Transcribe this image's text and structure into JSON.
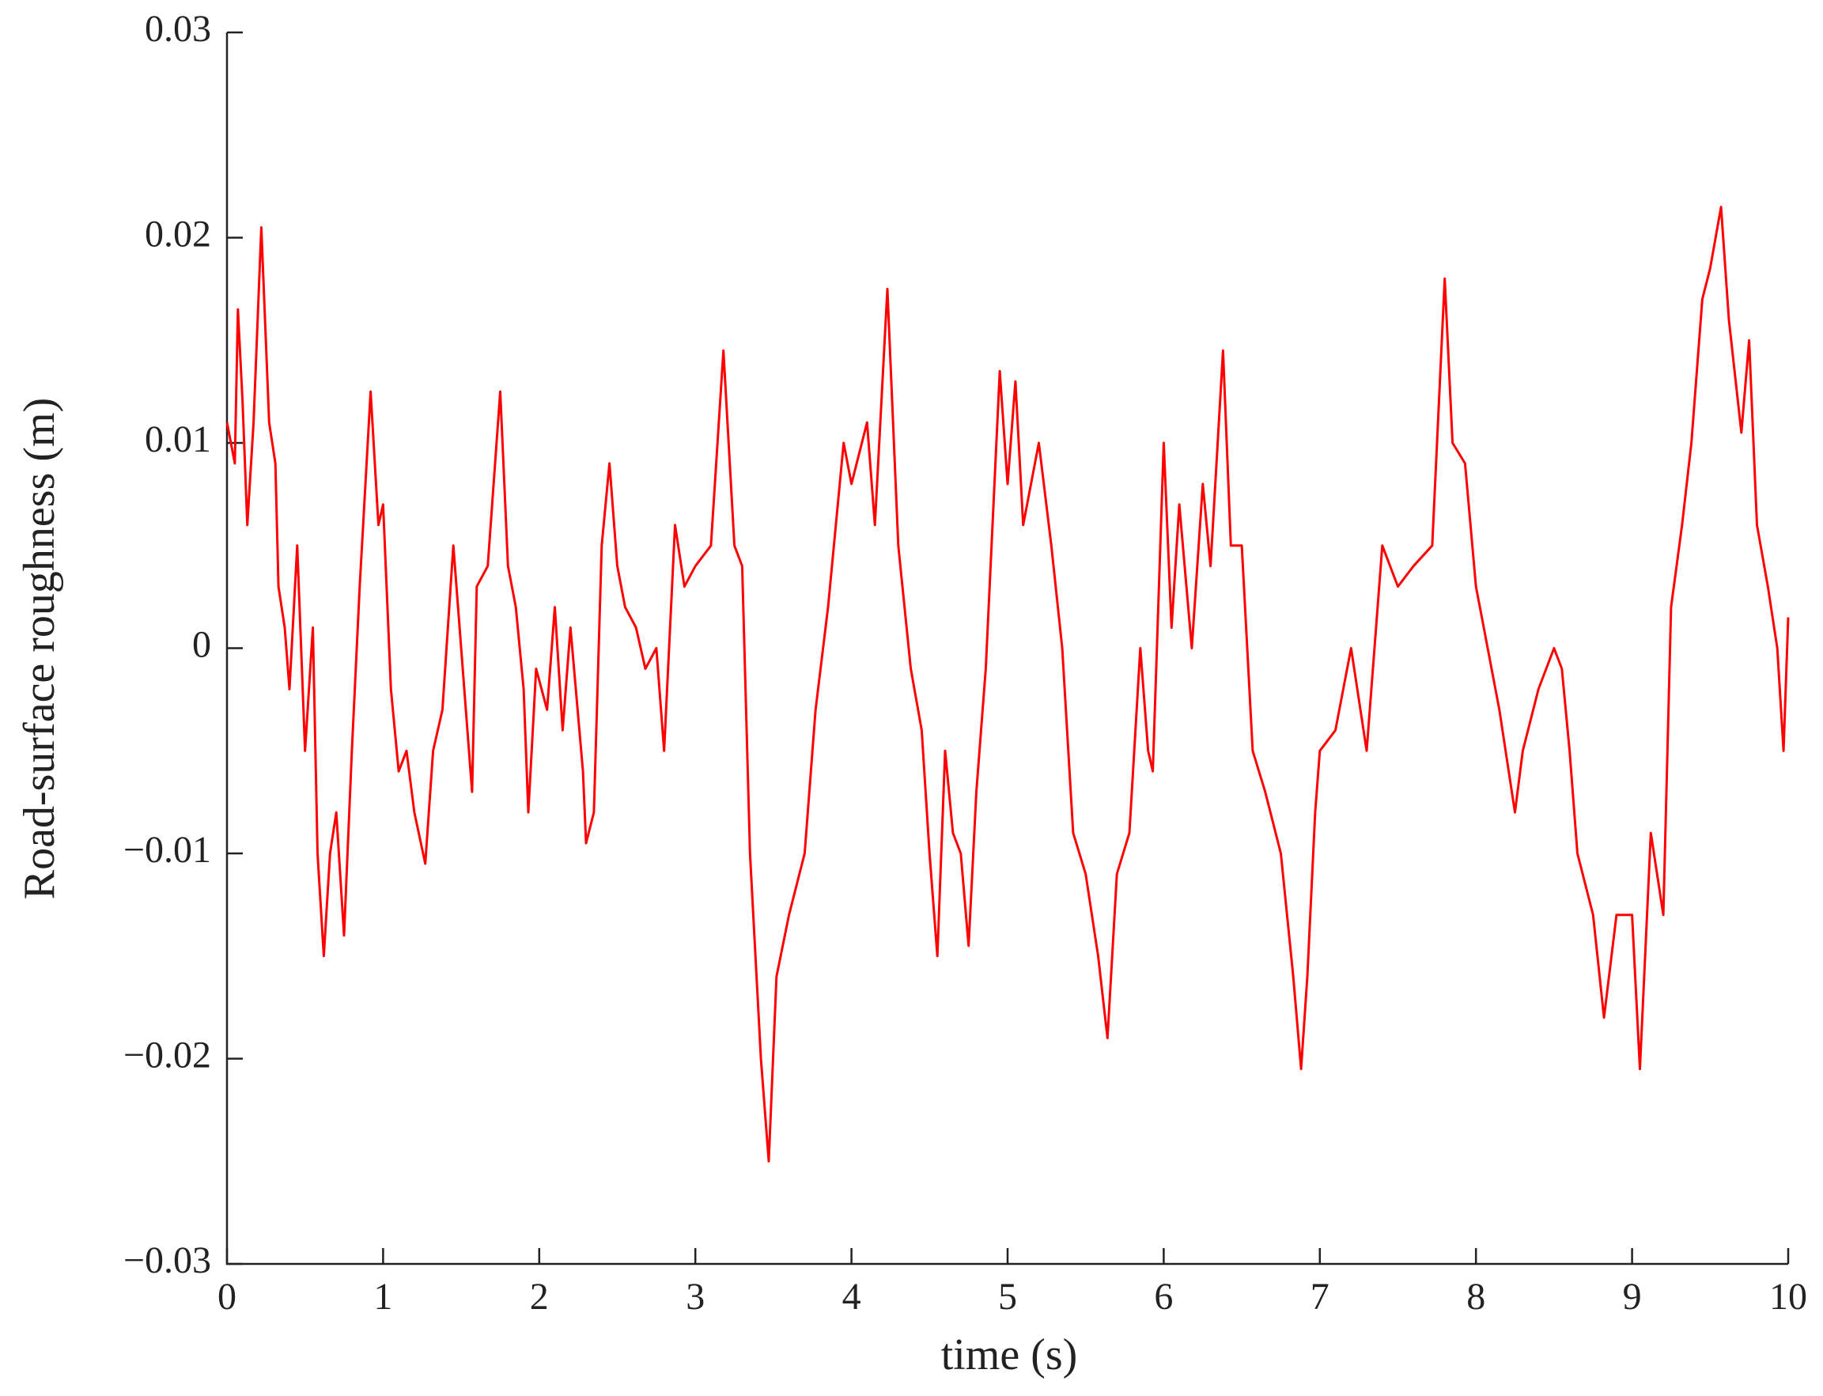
{
  "chart_data": {
    "type": "line",
    "xlabel": "time (s)",
    "ylabel": "Road-surface roughness (m)",
    "color": "#ff0000",
    "x": [
      0,
      0.05,
      0.07,
      0.1,
      0.13,
      0.17,
      0.22,
      0.27,
      0.31,
      0.33,
      0.37,
      0.4,
      0.45,
      0.5,
      0.55,
      0.58,
      0.62,
      0.66,
      0.7,
      0.75,
      0.8,
      0.85,
      0.92,
      0.97,
      1.0,
      1.05,
      1.1,
      1.15,
      1.2,
      1.27,
      1.32,
      1.38,
      1.45,
      1.5,
      1.57,
      1.6,
      1.67,
      1.75,
      1.8,
      1.85,
      1.9,
      1.93,
      1.98,
      2.05,
      2.1,
      2.15,
      2.2,
      2.28,
      2.3,
      2.35,
      2.4,
      2.45,
      2.5,
      2.55,
      2.62,
      2.68,
      2.75,
      2.8,
      2.87,
      2.93,
      3.0,
      3.1,
      3.18,
      3.25,
      3.3,
      3.35,
      3.42,
      3.47,
      3.52,
      3.6,
      3.7,
      3.77,
      3.85,
      3.95,
      4.0,
      4.1,
      4.15,
      4.23,
      4.3,
      4.38,
      4.45,
      4.5,
      4.55,
      4.6,
      4.65,
      4.7,
      4.75,
      4.8,
      4.86,
      4.95,
      5.0,
      5.05,
      5.1,
      5.2,
      5.28,
      5.35,
      5.42,
      5.5,
      5.58,
      5.64,
      5.7,
      5.78,
      5.85,
      5.9,
      5.93,
      6.0,
      6.05,
      6.1,
      6.18,
      6.25,
      6.3,
      6.38,
      6.43,
      6.5,
      6.57,
      6.65,
      6.75,
      6.83,
      6.88,
      6.92,
      6.97,
      7.0,
      7.1,
      7.2,
      7.3,
      7.4,
      7.5,
      7.6,
      7.72,
      7.8,
      7.85,
      7.93,
      8.0,
      8.05,
      8.15,
      8.25,
      8.3,
      8.4,
      8.5,
      8.55,
      8.6,
      8.65,
      8.75,
      8.82,
      8.9,
      9.0,
      9.05,
      9.12,
      9.2,
      9.25,
      9.32,
      9.38,
      9.45,
      9.5,
      9.57,
      9.62,
      9.7,
      9.75,
      9.8,
      9.87,
      9.93,
      9.97,
      10.0
    ],
    "values": [
      0.011,
      0.009,
      0.0165,
      0.012,
      0.006,
      0.011,
      0.0205,
      0.011,
      0.009,
      0.003,
      0.001,
      -0.002,
      0.005,
      -0.005,
      0.001,
      -0.01,
      -0.015,
      -0.01,
      -0.008,
      -0.014,
      -0.005,
      0.003,
      0.0125,
      0.006,
      0.007,
      -0.002,
      -0.006,
      -0.005,
      -0.008,
      -0.0105,
      -0.005,
      -0.003,
      0.005,
      0.0,
      -0.007,
      0.003,
      0.004,
      0.0125,
      0.004,
      0.002,
      -0.002,
      -0.008,
      -0.001,
      -0.003,
      0.002,
      -0.004,
      0.001,
      -0.006,
      -0.0095,
      -0.008,
      0.005,
      0.009,
      0.004,
      0.002,
      0.001,
      -0.001,
      0.0,
      -0.005,
      0.006,
      0.003,
      0.004,
      0.005,
      0.0145,
      0.005,
      0.004,
      -0.01,
      -0.02,
      -0.025,
      -0.016,
      -0.013,
      -0.01,
      -0.003,
      0.002,
      0.01,
      0.008,
      0.011,
      0.006,
      0.0175,
      0.005,
      -0.001,
      -0.004,
      -0.01,
      -0.015,
      -0.005,
      -0.009,
      -0.01,
      -0.0145,
      -0.007,
      -0.001,
      0.0135,
      0.008,
      0.013,
      0.006,
      0.01,
      0.005,
      0.0,
      -0.009,
      -0.011,
      -0.015,
      -0.019,
      -0.011,
      -0.009,
      0.0,
      -0.005,
      -0.006,
      0.01,
      0.001,
      0.007,
      0.0,
      0.008,
      0.004,
      0.0145,
      0.005,
      0.005,
      -0.005,
      -0.007,
      -0.01,
      -0.016,
      -0.0205,
      -0.016,
      -0.008,
      -0.005,
      -0.004,
      0.0,
      -0.005,
      0.005,
      0.003,
      0.004,
      0.005,
      0.018,
      0.01,
      0.009,
      0.003,
      0.001,
      -0.003,
      -0.008,
      -0.005,
      -0.002,
      0.0,
      -0.001,
      -0.005,
      -0.01,
      -0.013,
      -0.018,
      -0.013,
      -0.013,
      -0.0205,
      -0.009,
      -0.013,
      0.002,
      0.006,
      0.01,
      0.017,
      0.0185,
      0.0215,
      0.016,
      0.0105,
      0.015,
      0.006,
      0.003,
      0.0,
      -0.005,
      0.0015
    ],
    "xlim": [
      0,
      10
    ],
    "xticks": [
      0,
      1,
      2,
      3,
      4,
      5,
      6,
      7,
      8,
      9,
      10
    ],
    "ylim": [
      -0.03,
      0.03
    ],
    "yticks": [
      {
        "value": -0.03,
        "label": "−0.03"
      },
      {
        "value": -0.02,
        "label": "−0.02"
      },
      {
        "value": -0.01,
        "label": "−0.01"
      },
      0,
      0.01,
      0.02,
      0.03
    ]
  }
}
